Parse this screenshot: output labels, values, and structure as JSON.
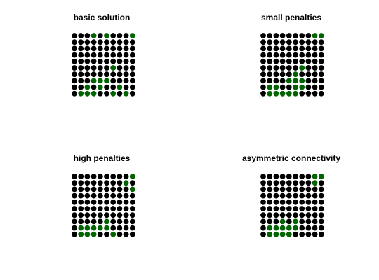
{
  "colors": {
    "background": "#ffffff",
    "unselected": "#000000",
    "selected": "#006400"
  },
  "chart_data": [
    {
      "type": "scatter",
      "title": "basic solution",
      "grid": {
        "rows": 10,
        "cols": 10
      },
      "selected": [
        [
          0,
          3
        ],
        [
          0,
          5
        ],
        [
          0,
          9
        ],
        [
          5,
          6
        ],
        [
          7,
          3
        ],
        [
          7,
          4
        ],
        [
          7,
          5
        ],
        [
          8,
          2
        ],
        [
          8,
          4
        ],
        [
          8,
          7
        ],
        [
          9,
          1
        ],
        [
          9,
          2
        ],
        [
          9,
          3
        ],
        [
          9,
          6
        ],
        [
          9,
          8
        ]
      ]
    },
    {
      "type": "scatter",
      "title": "small penalties",
      "grid": {
        "rows": 10,
        "cols": 10
      },
      "selected": [
        [
          0,
          8
        ],
        [
          0,
          9
        ],
        [
          5,
          6
        ],
        [
          6,
          5
        ],
        [
          7,
          4
        ],
        [
          7,
          5
        ],
        [
          7,
          6
        ],
        [
          8,
          1
        ],
        [
          8,
          2
        ],
        [
          8,
          5
        ],
        [
          8,
          6
        ],
        [
          9,
          1
        ],
        [
          9,
          2
        ],
        [
          9,
          3
        ],
        [
          9,
          4
        ],
        [
          9,
          5
        ]
      ]
    },
    {
      "type": "scatter",
      "title": "high penalties",
      "grid": {
        "rows": 10,
        "cols": 10
      },
      "selected": [
        [
          0,
          9
        ],
        [
          1,
          8
        ],
        [
          2,
          9
        ],
        [
          7,
          5
        ],
        [
          8,
          2
        ],
        [
          8,
          3
        ],
        [
          8,
          4
        ],
        [
          8,
          5
        ],
        [
          8,
          1
        ],
        [
          9,
          1
        ],
        [
          9,
          2
        ],
        [
          9,
          3
        ],
        [
          9,
          6
        ]
      ]
    },
    {
      "type": "scatter",
      "title": "asymmetric connectivity",
      "grid": {
        "rows": 10,
        "cols": 10
      },
      "selected": [
        [
          0,
          8
        ],
        [
          0,
          9
        ],
        [
          1,
          8
        ],
        [
          7,
          3
        ],
        [
          7,
          5
        ],
        [
          8,
          1
        ],
        [
          8,
          2
        ],
        [
          8,
          3
        ],
        [
          8,
          4
        ],
        [
          8,
          5
        ],
        [
          9,
          1
        ],
        [
          9,
          2
        ],
        [
          9,
          3
        ],
        [
          9,
          4
        ]
      ]
    }
  ]
}
